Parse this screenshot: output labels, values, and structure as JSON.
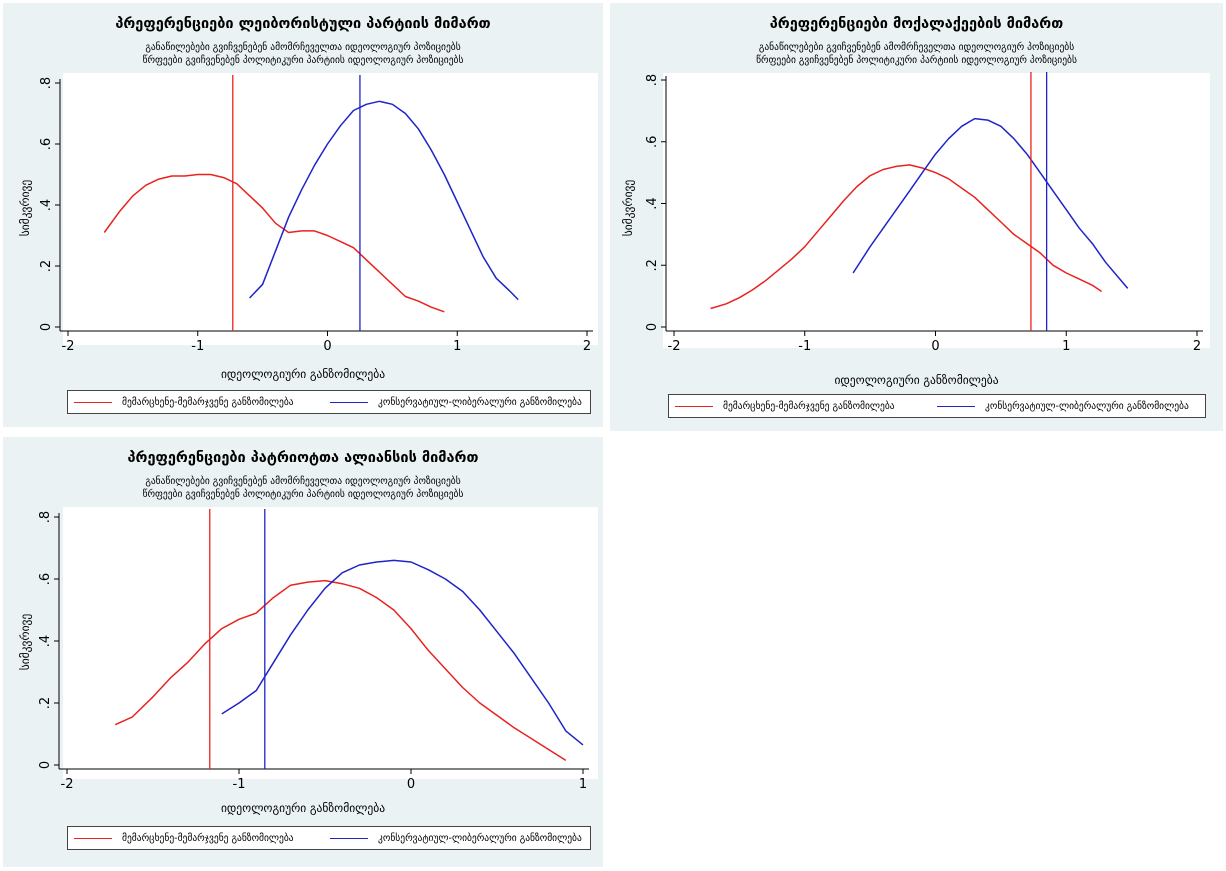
{
  "colors": {
    "red": "#e8231f",
    "blue": "#1f24c8",
    "panel_bg": "#eaf2f3",
    "plot_bg": "#ffffff"
  },
  "charts": [
    {
      "title": "პრეფერენციები ლეიბორისტული პარტიის მიმართ",
      "subtitle1": "განაწილებები გვიჩვენებენ ამომრჩეველთა იდეოლოგიურ პოზიციებს",
      "subtitle2": "წრფეები გვიჩვენებენ პოლიტიკური პარტიის იდეოლოგიურ პოზიციებს",
      "xlabel": "იდეოლოგიური განზომილება",
      "ylabel": "სიმკვრივე",
      "legend": [
        "მემარცხენე-მემარჯვენე განზომილება",
        "კონსერვატიულ-ლიბერალური განზომილება"
      ]
    },
    {
      "title": "პრეფერენციები მოქალაქეების მიმართ",
      "subtitle1": "განაწილებები გვიჩვენებენ ამომრჩეველთა იდეოლოგიურ პოზიციებს",
      "subtitle2": "წრფეები გვიჩვენებენ პოლიტიკური პარტიის იდეოლოგიურ პოზიციებს",
      "xlabel": "იდეოლოგიური განზომილება",
      "ylabel": "სიმკვრივე",
      "legend": [
        "მემარცხენე-მემარჯვენე განზომილება",
        "კონსერვატიულ-ლიბერალური განზომილება"
      ]
    },
    {
      "title": "პრეფერენციები პატრიოტთა ალიანსის მიმართ",
      "subtitle1": "განაწილებები გვიჩვენებენ ამომრჩეველთა იდეოლოგიურ პოზიციებს",
      "subtitle2": "წრფეები გვიჩვენებენ პოლიტიკური პარტიის იდეოლოგიურ პოზიციებს",
      "xlabel": "იდეოლოგიური განზომილება",
      "ylabel": "სიმკვრივე",
      "legend": [
        "მემარცხენე-მემარჯვენე განზომილება",
        "კონსერვატიულ-ლიბერალური განზომილება"
      ]
    }
  ],
  "chart_data": [
    {
      "type": "line",
      "title": "პრეფერენციები ლეიბორისტული პარტიის მიმართ",
      "xlabel": "იდეოლოგიური განზომილება",
      "ylabel": "სიმკვრივე",
      "xlim": [
        -2,
        2
      ],
      "ylim": [
        0,
        0.8
      ],
      "xticks": [
        "-2",
        "-1",
        "0",
        "1",
        "2"
      ],
      "yticks": [
        "0",
        ".2",
        ".4",
        ".6",
        ".8"
      ],
      "grid": false,
      "legend_position": "bottom",
      "series": [
        {
          "name": "მემარცხენე-მემარჯვენე განზომილება",
          "color": "#e8231f",
          "x": [
            -1.72,
            -1.6,
            -1.5,
            -1.4,
            -1.3,
            -1.2,
            -1.1,
            -1.0,
            -0.9,
            -0.8,
            -0.7,
            -0.6,
            -0.5,
            -0.4,
            -0.3,
            -0.2,
            -0.1,
            0.0,
            0.1,
            0.2,
            0.3,
            0.4,
            0.5,
            0.6,
            0.7,
            0.8,
            0.9
          ],
          "y": [
            0.31,
            0.38,
            0.43,
            0.465,
            0.485,
            0.495,
            0.495,
            0.5,
            0.5,
            0.49,
            0.47,
            0.43,
            0.39,
            0.34,
            0.31,
            0.315,
            0.315,
            0.3,
            0.28,
            0.26,
            0.22,
            0.18,
            0.14,
            0.1,
            0.085,
            0.065,
            0.05
          ]
        },
        {
          "name": "კონსერვატიულ-ლიბერალური განზომილება",
          "color": "#1f24c8",
          "x": [
            -0.6,
            -0.5,
            -0.4,
            -0.3,
            -0.2,
            -0.1,
            0.0,
            0.1,
            0.2,
            0.3,
            0.4,
            0.5,
            0.6,
            0.7,
            0.8,
            0.9,
            1.0,
            1.1,
            1.2,
            1.3,
            1.4,
            1.47
          ],
          "y": [
            0.095,
            0.14,
            0.25,
            0.36,
            0.45,
            0.53,
            0.6,
            0.66,
            0.71,
            0.73,
            0.74,
            0.73,
            0.7,
            0.65,
            0.58,
            0.5,
            0.41,
            0.32,
            0.23,
            0.16,
            0.12,
            0.09
          ]
        }
      ],
      "vlines": [
        {
          "x": -0.73,
          "color": "#e8231f"
        },
        {
          "x": 0.25,
          "color": "#1f24c8"
        }
      ]
    },
    {
      "type": "line",
      "title": "პრეფერენციები მოქალაქეების მიმართ",
      "xlabel": "იდეოლოგიური განზომილება",
      "ylabel": "სიმკვრივე",
      "xlim": [
        -2,
        2
      ],
      "ylim": [
        0,
        0.8
      ],
      "xticks": [
        "-2",
        "-1",
        "0",
        "1",
        "2"
      ],
      "yticks": [
        "0",
        ".2",
        ".4",
        ".6",
        ".8"
      ],
      "grid": false,
      "legend_position": "bottom",
      "series": [
        {
          "name": "მემარცხენე-მემარჯვენე განზომილება",
          "color": "#e8231f",
          "x": [
            -1.72,
            -1.6,
            -1.5,
            -1.4,
            -1.3,
            -1.2,
            -1.1,
            -1.0,
            -0.9,
            -0.8,
            -0.7,
            -0.6,
            -0.5,
            -0.4,
            -0.3,
            -0.2,
            -0.1,
            0.0,
            0.1,
            0.2,
            0.3,
            0.4,
            0.5,
            0.6,
            0.7,
            0.8,
            0.9,
            1.0,
            1.1,
            1.2,
            1.27
          ],
          "y": [
            0.06,
            0.075,
            0.095,
            0.12,
            0.15,
            0.185,
            0.22,
            0.26,
            0.31,
            0.36,
            0.41,
            0.455,
            0.49,
            0.51,
            0.52,
            0.525,
            0.515,
            0.5,
            0.48,
            0.45,
            0.42,
            0.38,
            0.34,
            0.3,
            0.27,
            0.24,
            0.2,
            0.175,
            0.155,
            0.135,
            0.115
          ]
        },
        {
          "name": "კონსერვატიულ-ლიბერალური განზომილება",
          "color": "#1f24c8",
          "x": [
            -0.63,
            -0.5,
            -0.4,
            -0.3,
            -0.2,
            -0.1,
            0.0,
            0.1,
            0.2,
            0.3,
            0.4,
            0.5,
            0.6,
            0.7,
            0.8,
            0.9,
            1.0,
            1.1,
            1.2,
            1.3,
            1.4,
            1.47
          ],
          "y": [
            0.175,
            0.26,
            0.32,
            0.38,
            0.44,
            0.5,
            0.56,
            0.61,
            0.65,
            0.675,
            0.67,
            0.65,
            0.61,
            0.56,
            0.5,
            0.44,
            0.38,
            0.32,
            0.27,
            0.21,
            0.16,
            0.125
          ]
        }
      ],
      "vlines": [
        {
          "x": 0.73,
          "color": "#e8231f"
        },
        {
          "x": 0.85,
          "color": "#1f24c8"
        }
      ]
    },
    {
      "type": "line",
      "title": "პრეფერენციები პატრიოტთა ალიანსის მიმართ",
      "xlabel": "იდეოლოგიური განზომილება",
      "ylabel": "სიმკვრივე",
      "xlim": [
        -2,
        1
      ],
      "ylim": [
        0,
        0.8
      ],
      "xticks": [
        "-2",
        "-1",
        "0",
        "1"
      ],
      "yticks": [
        "0",
        ".2",
        ".4",
        ".6",
        ".8"
      ],
      "grid": false,
      "legend_position": "bottom",
      "series": [
        {
          "name": "მემარცხენე-მემარჯვენე განზომილება",
          "color": "#e8231f",
          "x": [
            -1.72,
            -1.62,
            -1.5,
            -1.4,
            -1.3,
            -1.2,
            -1.1,
            -1.0,
            -0.9,
            -0.8,
            -0.7,
            -0.6,
            -0.5,
            -0.4,
            -0.3,
            -0.2,
            -0.1,
            0.0,
            0.1,
            0.2,
            0.3,
            0.4,
            0.5,
            0.6,
            0.7,
            0.8,
            0.9
          ],
          "y": [
            0.13,
            0.155,
            0.22,
            0.28,
            0.33,
            0.39,
            0.44,
            0.47,
            0.49,
            0.54,
            0.58,
            0.59,
            0.595,
            0.585,
            0.57,
            0.54,
            0.5,
            0.44,
            0.37,
            0.31,
            0.25,
            0.2,
            0.16,
            0.12,
            0.085,
            0.05,
            0.015
          ]
        },
        {
          "name": "კონსერვატიულ-ლიბერალური განზომილება",
          "color": "#1f24c8",
          "x": [
            -1.1,
            -1.0,
            -0.9,
            -0.8,
            -0.7,
            -0.6,
            -0.5,
            -0.4,
            -0.3,
            -0.2,
            -0.1,
            0.0,
            0.1,
            0.2,
            0.3,
            0.4,
            0.5,
            0.6,
            0.7,
            0.8,
            0.9,
            1.0
          ],
          "y": [
            0.165,
            0.2,
            0.24,
            0.33,
            0.42,
            0.5,
            0.57,
            0.62,
            0.645,
            0.655,
            0.66,
            0.655,
            0.63,
            0.6,
            0.56,
            0.5,
            0.43,
            0.36,
            0.28,
            0.2,
            0.11,
            0.065
          ]
        }
      ],
      "vlines": [
        {
          "x": -1.17,
          "color": "#e8231f"
        },
        {
          "x": -0.85,
          "color": "#1f24c8"
        }
      ]
    }
  ]
}
